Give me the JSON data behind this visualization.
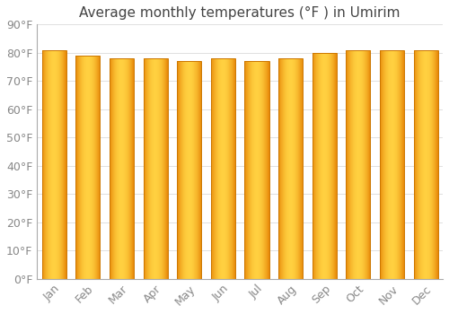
{
  "title": "Average monthly temperatures (°F ) in Umirim",
  "months": [
    "Jan",
    "Feb",
    "Mar",
    "Apr",
    "May",
    "Jun",
    "Jul",
    "Aug",
    "Sep",
    "Oct",
    "Nov",
    "Dec"
  ],
  "values": [
    81,
    79,
    78,
    78,
    77,
    78,
    77,
    78,
    80,
    81,
    81,
    81
  ],
  "ylim": [
    0,
    90
  ],
  "yticks": [
    0,
    10,
    20,
    30,
    40,
    50,
    60,
    70,
    80,
    90
  ],
  "ytick_labels": [
    "0°F",
    "10°F",
    "20°F",
    "30°F",
    "40°F",
    "50°F",
    "60°F",
    "70°F",
    "80°F",
    "90°F"
  ],
  "bar_color_left": "#E8890A",
  "bar_color_center": "#FFD040",
  "bar_color_right": "#E8890A",
  "bar_color_top": "#E89010",
  "bar_edge_color": "#CC7700",
  "background_color": "#FFFFFF",
  "grid_color": "#E0E0E0",
  "title_fontsize": 11,
  "tick_fontsize": 9,
  "font_family": "DejaVu Sans"
}
